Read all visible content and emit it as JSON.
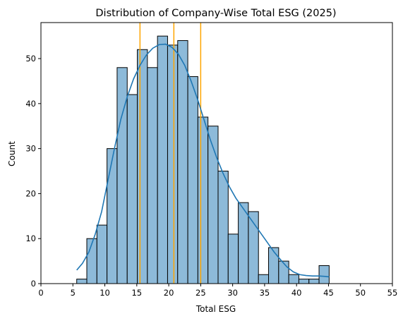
{
  "chart_data": {
    "type": "bar",
    "subtype": "histogram",
    "title": "Distribution of Company-Wise Total ESG (2025)",
    "xlabel": "Total ESG",
    "ylabel": "Count",
    "xlim": [
      0,
      55
    ],
    "ylim": [
      0,
      58
    ],
    "xticks": [
      0,
      5,
      10,
      15,
      20,
      25,
      30,
      35,
      40,
      45,
      50,
      55
    ],
    "yticks": [
      0,
      10,
      20,
      30,
      40,
      50
    ],
    "grid": false,
    "bin_start": 5.6,
    "bin_width": 1.58,
    "counts": [
      1,
      10,
      13,
      30,
      48,
      42,
      52,
      48,
      55,
      53,
      54,
      46,
      37,
      35,
      25,
      11,
      18,
      16,
      2,
      8,
      5,
      2,
      1,
      1,
      4
    ],
    "bar_color": "#8dbad9",
    "kde": {
      "color": "#1f77b4",
      "x": [
        5.6,
        6.5,
        7.5,
        8.5,
        9.5,
        10.5,
        11.5,
        12.5,
        13.5,
        14.5,
        15.5,
        16.5,
        17.5,
        18.5,
        19.5,
        20.5,
        21.5,
        22.5,
        23.5,
        24.5,
        25.5,
        26.5,
        27.5,
        28.5,
        29.5,
        30.5,
        31.5,
        32.5,
        33.5,
        34.5,
        35.5,
        36.5,
        37.5,
        38.5,
        39.5,
        40.5,
        41.5,
        42.5,
        43.5,
        44.5,
        45.1
      ],
      "y": [
        3,
        4.5,
        7,
        11,
        16,
        23,
        30,
        36.5,
        41.5,
        45.5,
        48.5,
        50.8,
        52.3,
        53.1,
        53.2,
        52.5,
        51,
        48.5,
        45,
        41,
        36.5,
        32,
        28,
        24.5,
        21.5,
        19,
        17,
        15,
        13,
        11,
        9,
        7,
        5.3,
        3.7,
        2.6,
        2,
        1.8,
        1.7,
        1.7,
        1.6,
        1.5
      ]
    },
    "vertical_lines": {
      "color": "#ffa500",
      "x": [
        15.5,
        20.8,
        25.0
      ]
    }
  }
}
